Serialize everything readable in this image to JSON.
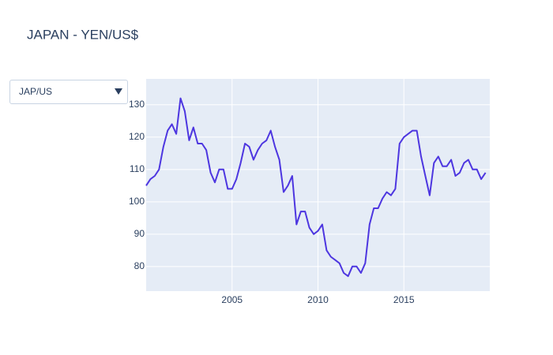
{
  "chart_data": {
    "type": "line",
    "title": "JAPAN - YEN/US$",
    "x": [
      2000,
      2000.25,
      2000.5,
      2000.75,
      2001,
      2001.25,
      2001.5,
      2001.75,
      2002,
      2002.25,
      2002.5,
      2002.75,
      2003,
      2003.25,
      2003.5,
      2003.75,
      2004,
      2004.25,
      2004.5,
      2004.75,
      2005,
      2005.25,
      2005.5,
      2005.75,
      2006,
      2006.25,
      2006.5,
      2006.75,
      2007,
      2007.25,
      2007.5,
      2007.75,
      2008,
      2008.25,
      2008.5,
      2008.75,
      2009,
      2009.25,
      2009.5,
      2009.75,
      2010,
      2010.25,
      2010.5,
      2010.75,
      2011,
      2011.25,
      2011.5,
      2011.75,
      2012,
      2012.25,
      2012.5,
      2012.75,
      2013,
      2013.25,
      2013.5,
      2013.75,
      2014,
      2014.25,
      2014.5,
      2014.75,
      2015,
      2015.25,
      2015.5,
      2015.75,
      2016,
      2016.25,
      2016.5,
      2016.75,
      2017,
      2017.25,
      2017.5,
      2017.75,
      2018,
      2018.25,
      2018.5,
      2018.75,
      2019,
      2019.25,
      2019.5,
      2019.75
    ],
    "series": [
      {
        "name": "JAP/US",
        "color": "#4d36e0",
        "values": [
          105,
          107,
          108,
          110,
          117,
          122,
          124,
          121,
          132,
          128,
          119,
          123,
          118,
          118,
          116,
          109,
          106,
          110,
          110,
          104,
          104,
          107,
          112,
          118,
          117,
          113,
          116,
          118,
          119,
          122,
          117,
          113,
          103,
          105,
          108,
          93,
          97,
          97,
          92,
          90,
          91,
          93,
          85,
          83,
          82,
          81,
          78,
          77,
          80,
          80,
          78,
          81,
          93,
          98,
          98,
          101,
          103,
          102,
          104,
          118,
          120,
          121,
          122,
          122,
          114,
          108,
          102,
          112,
          114,
          111,
          111,
          113,
          108,
          109,
          112,
          113,
          110,
          110,
          107,
          109
        ]
      }
    ],
    "xlim": [
      2000,
      2020
    ],
    "xticks": [
      2005,
      2010,
      2015
    ],
    "ylim": [
      72.4,
      138
    ],
    "yticks": [
      80,
      90,
      100,
      110,
      120,
      130
    ],
    "grid": true
  }
}
